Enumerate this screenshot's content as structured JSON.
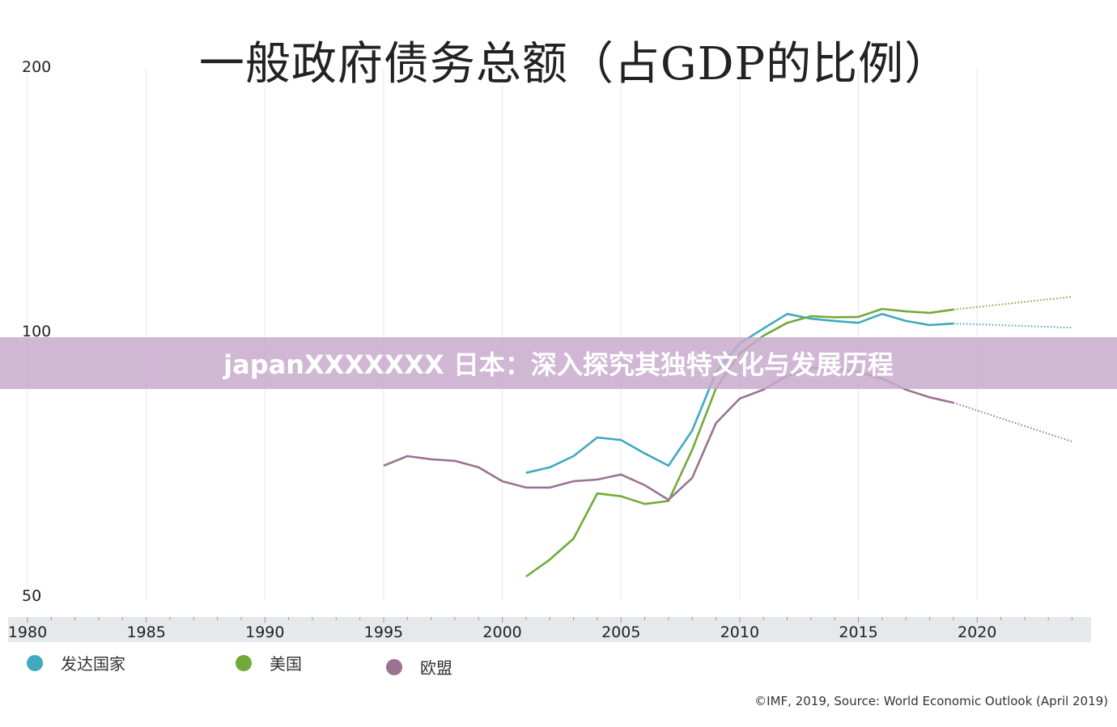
{
  "chart_data": {
    "type": "line",
    "title": "一般政府债务总额（占GDP的比例）",
    "y_scale": "log",
    "ylim": [
      50,
      200
    ],
    "y_ticks": [
      "200",
      "100",
      "50"
    ],
    "y_tick_values": [
      200,
      100,
      50
    ],
    "xlim": [
      1980,
      2024
    ],
    "x_ticks": [
      "1980",
      "1985",
      "1990",
      "1995",
      "2000",
      "2005",
      "2010",
      "2015",
      "2020"
    ],
    "x_tick_values": [
      1980,
      1985,
      1990,
      1995,
      2000,
      2005,
      2010,
      2015,
      2020
    ],
    "grid": "vertical",
    "legend_placement": "bottom",
    "projection_start": 2019,
    "series": [
      {
        "name": "发达国家",
        "color": "#3fa9bf",
        "x": [
          2001,
          2002,
          2003,
          2004,
          2005,
          2006,
          2007,
          2008,
          2009,
          2010,
          2011,
          2012,
          2013,
          2014,
          2015,
          2016,
          2017,
          2018,
          2019,
          2020,
          2024
        ],
        "values": [
          68.9,
          69.9,
          72.0,
          75.6,
          75.1,
          72.5,
          70.2,
          77.0,
          89.7,
          96.7,
          100.6,
          104.5,
          103.2,
          102.6,
          102.1,
          104.5,
          102.6,
          101.5,
          101.9,
          101.7,
          100.8
        ]
      },
      {
        "name": "美国",
        "color": "#72aa3a",
        "x": [
          2001,
          2002,
          2003,
          2004,
          2005,
          2006,
          2007,
          2008,
          2009,
          2010,
          2011,
          2012,
          2013,
          2014,
          2015,
          2016,
          2017,
          2018,
          2019,
          2024
        ],
        "values": [
          52.5,
          54.9,
          58.0,
          65.3,
          64.8,
          63.5,
          64.0,
          73.2,
          86.0,
          94.2,
          98.7,
          102.1,
          103.9,
          103.6,
          103.7,
          105.9,
          105.2,
          104.8,
          105.7,
          109.3
        ]
      },
      {
        "name": "欧盟",
        "color": "#9c7290",
        "x": [
          1995,
          1996,
          1997,
          1998,
          1999,
          2000,
          2001,
          2002,
          2003,
          2004,
          2005,
          2006,
          2007,
          2008,
          2009,
          2010,
          2011,
          2012,
          2013,
          2014,
          2015,
          2016,
          2017,
          2018,
          2019,
          2024
        ],
        "values": [
          70.2,
          72.0,
          71.4,
          71.1,
          69.9,
          67.4,
          66.3,
          66.3,
          67.4,
          67.7,
          68.6,
          66.7,
          64.2,
          68.0,
          78.5,
          83.7,
          85.7,
          88.8,
          90.7,
          90.7,
          89.7,
          88.2,
          85.7,
          84.0,
          82.8,
          74.8
        ]
      }
    ]
  },
  "banner": "japanXXXXXXX 日本：深入探究其独特文化与发展历程",
  "source": "©IMF, 2019, Source: World Economic Outlook (April 2019)",
  "colors": {
    "axis_band": "#e6e9ec",
    "grid": "#e8e8e8"
  }
}
